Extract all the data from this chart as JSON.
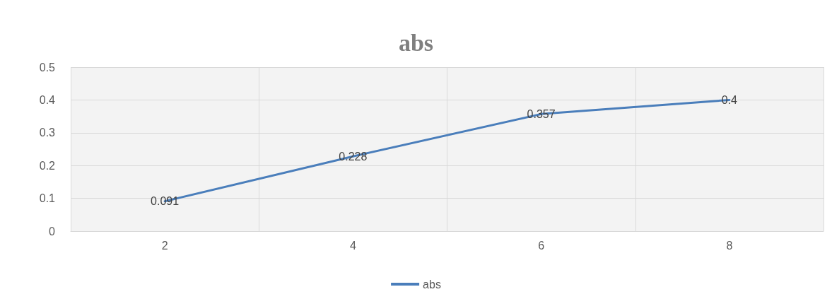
{
  "chart_data": {
    "type": "line",
    "title": "abs",
    "categories": [
      "2",
      "4",
      "6",
      "8"
    ],
    "series": [
      {
        "name": "abs",
        "color": "#4a7ebb",
        "values": [
          0.091,
          0.228,
          0.357,
          0.4
        ]
      }
    ],
    "ylim": [
      0,
      0.5
    ],
    "yticks": [
      0,
      0.1,
      0.2,
      0.3,
      0.4,
      0.5
    ],
    "grid": true,
    "legend": "bottom",
    "data_labels": true,
    "marker": "none",
    "line_style": "solid"
  }
}
